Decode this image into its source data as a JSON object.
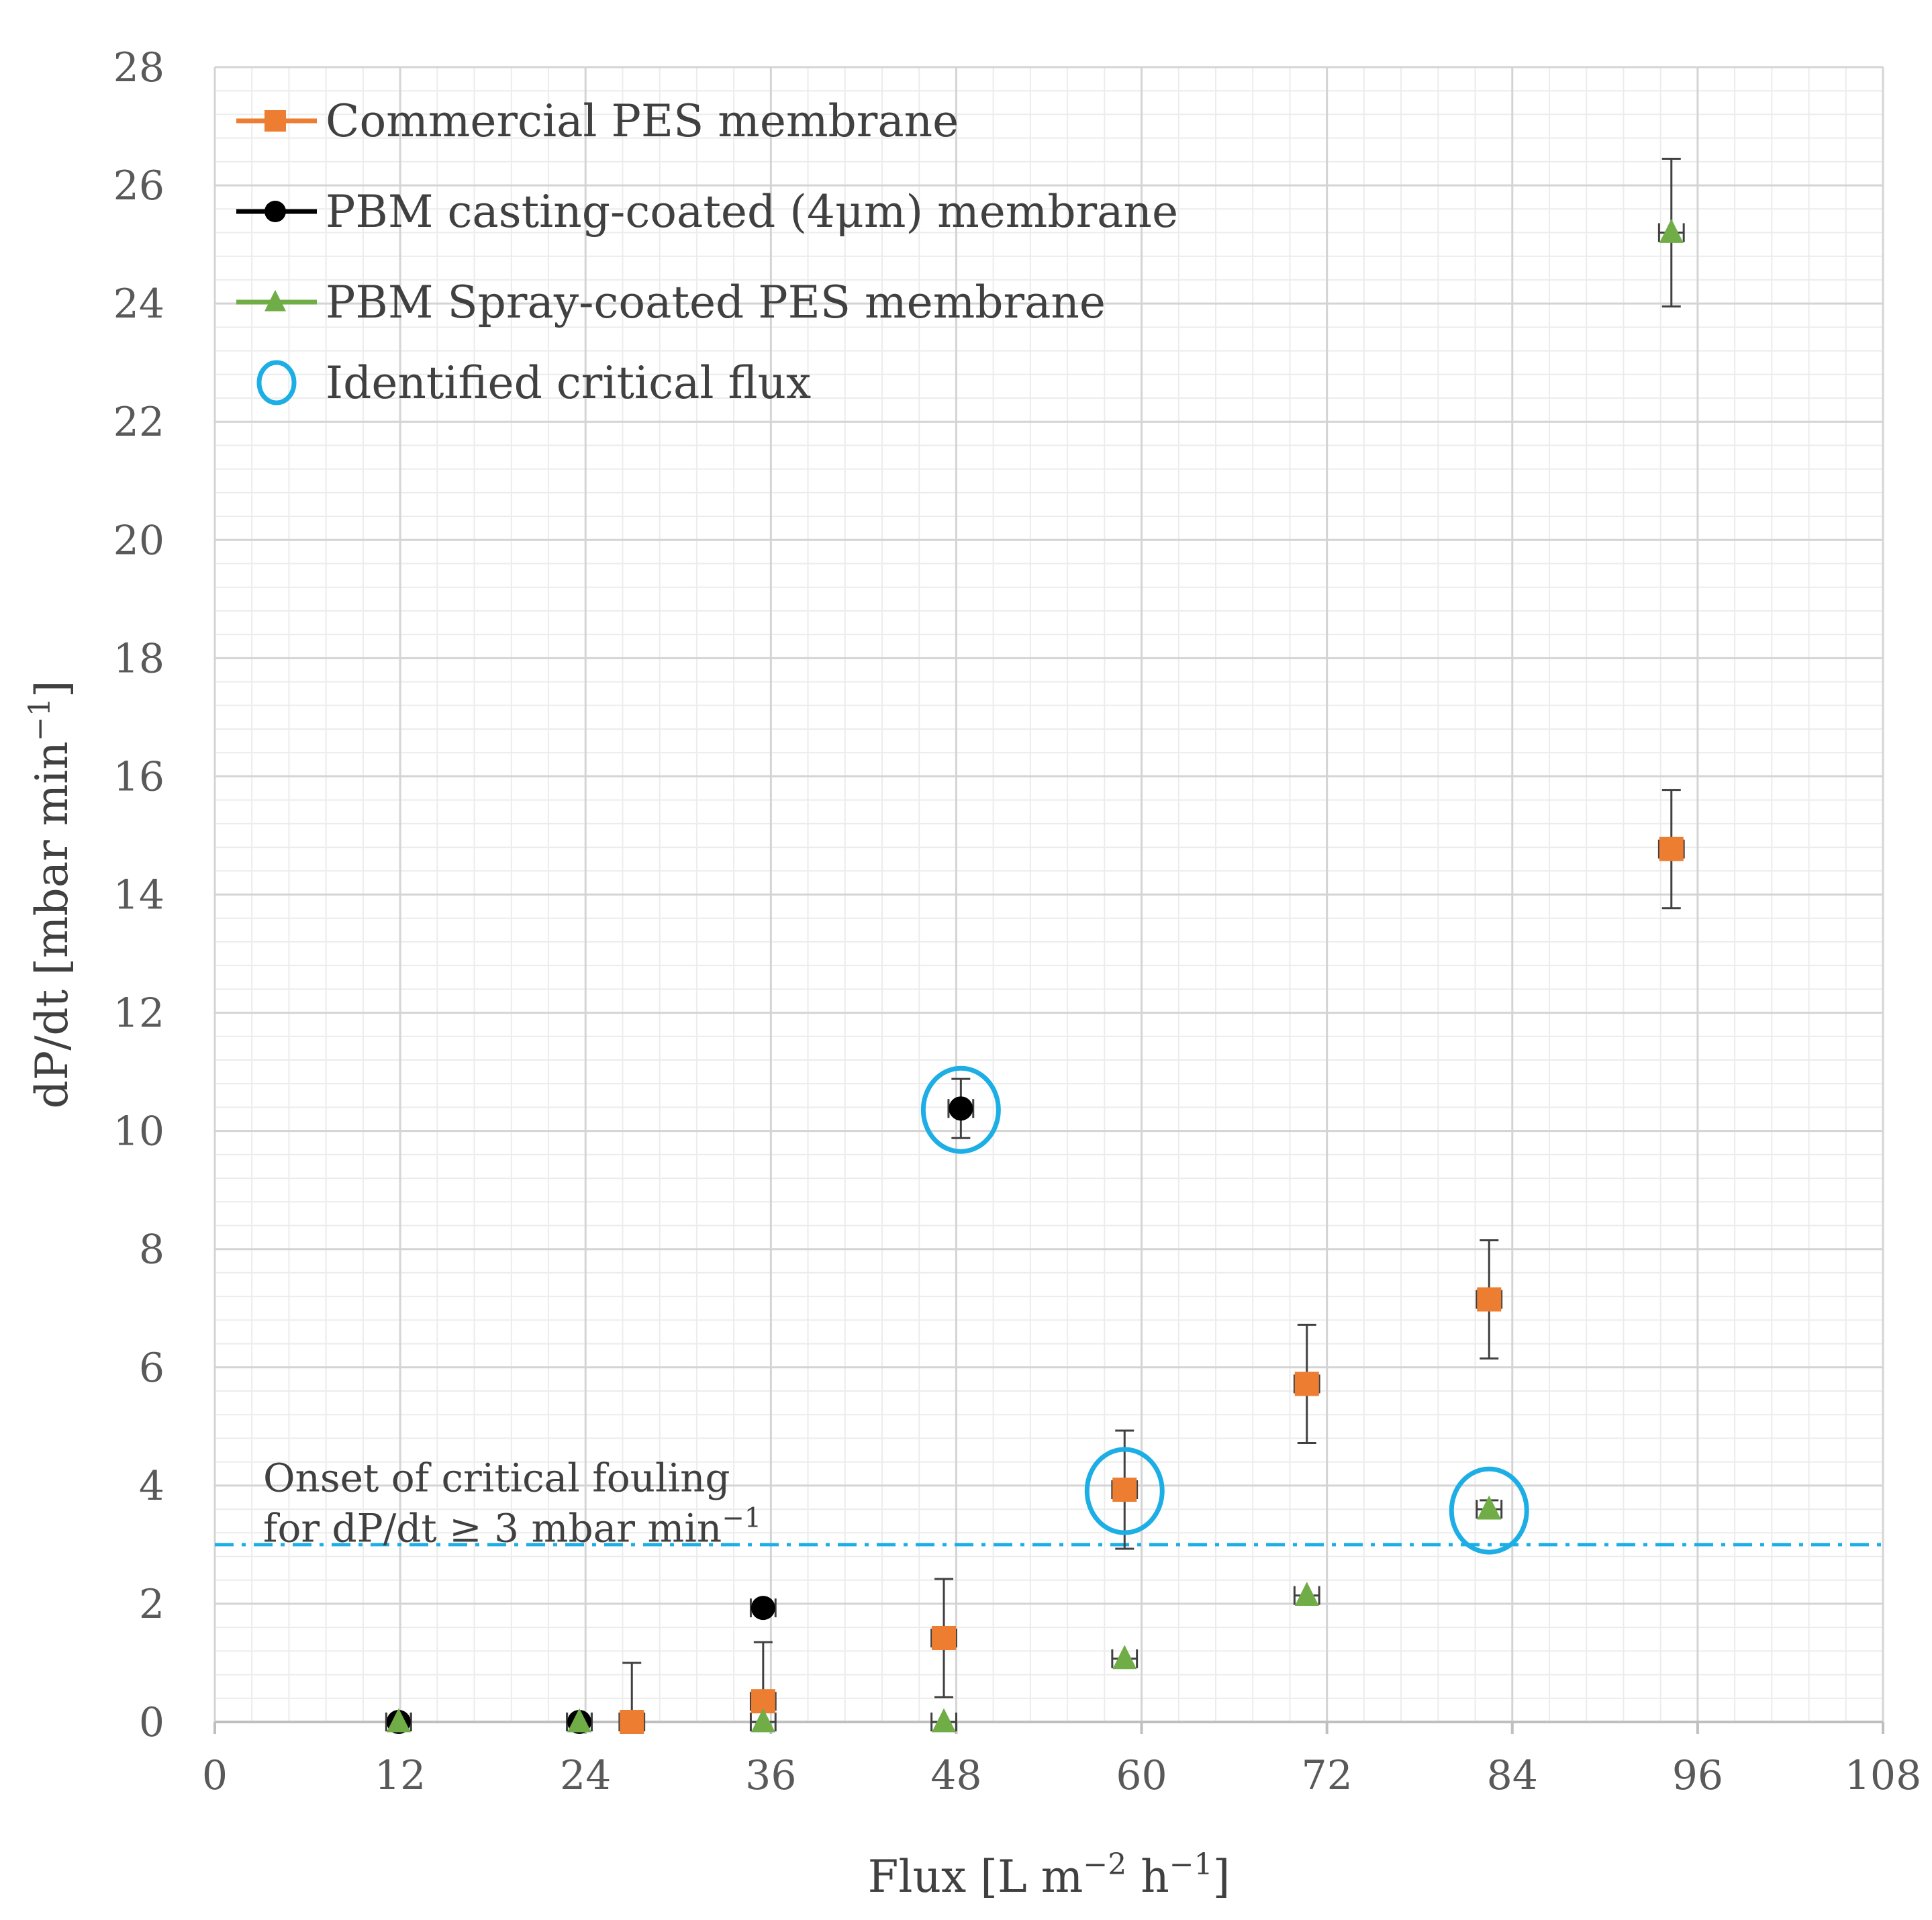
{
  "chart_data": {
    "type": "scatter",
    "xlabel": "Flux [L m",
    "xlabel_sup1": "−2",
    "xlabel_mid": " h",
    "xlabel_sup2": "−1",
    "xlabel_end": "]",
    "ylabel": "dP/dt [mbar min",
    "ylabel_sup": "−1",
    "ylabel_end": "]",
    "xlim": [
      0,
      108
    ],
    "ylim": [
      0,
      28
    ],
    "xticks": [
      "0",
      "12",
      "24",
      "36",
      "48",
      "60",
      "72",
      "84",
      "96",
      "108"
    ],
    "yticks": [
      "0",
      "2",
      "4",
      "6",
      "8",
      "10",
      "12",
      "14",
      "16",
      "18",
      "20",
      "22",
      "24",
      "26",
      "28"
    ],
    "x_minor_step": 2.4,
    "y_minor_step": 0.4,
    "grid": true,
    "legend_position": "top-left",
    "series": [
      {
        "name": "Commercial PES membrane",
        "color": "#ED7D31",
        "marker": "square",
        "points": [
          {
            "x": 27,
            "y": 0,
            "yerr_up": 1.0,
            "yerr_down": 0,
            "xerr": 0.8
          },
          {
            "x": 35.5,
            "y": 0.35,
            "yerr_up": 1.0,
            "yerr_down": 0,
            "xerr": 0.8
          },
          {
            "x": 47.2,
            "y": 1.42,
            "yerr_up": 1.0,
            "yerr_down": 1.0,
            "xerr": 0.8
          },
          {
            "x": 58.9,
            "y": 3.93,
            "yerr_up": 1.0,
            "yerr_down": 1.0,
            "xerr": 0.8
          },
          {
            "x": 70.7,
            "y": 5.72,
            "yerr_up": 1.0,
            "yerr_down": 1.0,
            "xerr": 0.8
          },
          {
            "x": 82.5,
            "y": 7.15,
            "yerr_up": 1.0,
            "yerr_down": 1.0,
            "xerr": 0.8
          },
          {
            "x": 94.3,
            "y": 14.77,
            "yerr_up": 1.0,
            "yerr_down": 1.0,
            "xerr": 0.8
          }
        ]
      },
      {
        "name": "PBM casting-coated (4μm) membrane",
        "color": "#000000",
        "marker": "circle",
        "points": [
          {
            "x": 11.9,
            "y": 0,
            "yerr_up": 0,
            "yerr_down": 0,
            "xerr": 0.8
          },
          {
            "x": 23.6,
            "y": 0,
            "yerr_up": 0,
            "yerr_down": 0,
            "xerr": 0.8
          },
          {
            "x": 35.5,
            "y": 1.93,
            "yerr_up": 0,
            "yerr_down": 0,
            "xerr": 0.8
          },
          {
            "x": 48.3,
            "y": 10.38,
            "yerr_up": 0.5,
            "yerr_down": 0.5,
            "xerr": 0.8
          }
        ]
      },
      {
        "name": "PBM Spray-coated PES membrane",
        "color": "#70AD47",
        "marker": "triangle",
        "points": [
          {
            "x": 11.9,
            "y": 0,
            "yerr_up": 0,
            "yerr_down": 0,
            "xerr": 0.8
          },
          {
            "x": 23.6,
            "y": 0,
            "yerr_up": 0,
            "yerr_down": 0,
            "xerr": 0.8
          },
          {
            "x": 35.5,
            "y": 0,
            "yerr_up": 0,
            "yerr_down": 0,
            "xerr": 0.8
          },
          {
            "x": 47.2,
            "y": 0,
            "yerr_up": 0,
            "yerr_down": 0,
            "xerr": 0.8
          },
          {
            "x": 58.9,
            "y": 1.07,
            "yerr_up": 0,
            "yerr_down": 0,
            "xerr": 0.8
          },
          {
            "x": 70.7,
            "y": 2.14,
            "yerr_up": 0,
            "yerr_down": 0,
            "xerr": 0.8
          },
          {
            "x": 82.5,
            "y": 3.6,
            "yerr_up": 0.15,
            "yerr_down": 0.15,
            "xerr": 0.8
          },
          {
            "x": 94.3,
            "y": 25.2,
            "yerr_up": 1.25,
            "yerr_down": 1.25,
            "xerr": 0.8
          }
        ]
      }
    ],
    "critical_flux": {
      "name": "Identified critical flux",
      "color": "#1CAEE5",
      "points": [
        {
          "x": 48.3,
          "y": 10.38
        },
        {
          "x": 58.9,
          "y": 3.93
        },
        {
          "x": 82.5,
          "y": 3.6
        }
      ]
    },
    "threshold": {
      "y": 3,
      "color": "#1CAEE5",
      "label_line1": "Onset of critical fouling",
      "label_line2": "for dP/dt ≥ 3 mbar min",
      "label_sup": "−1"
    }
  }
}
